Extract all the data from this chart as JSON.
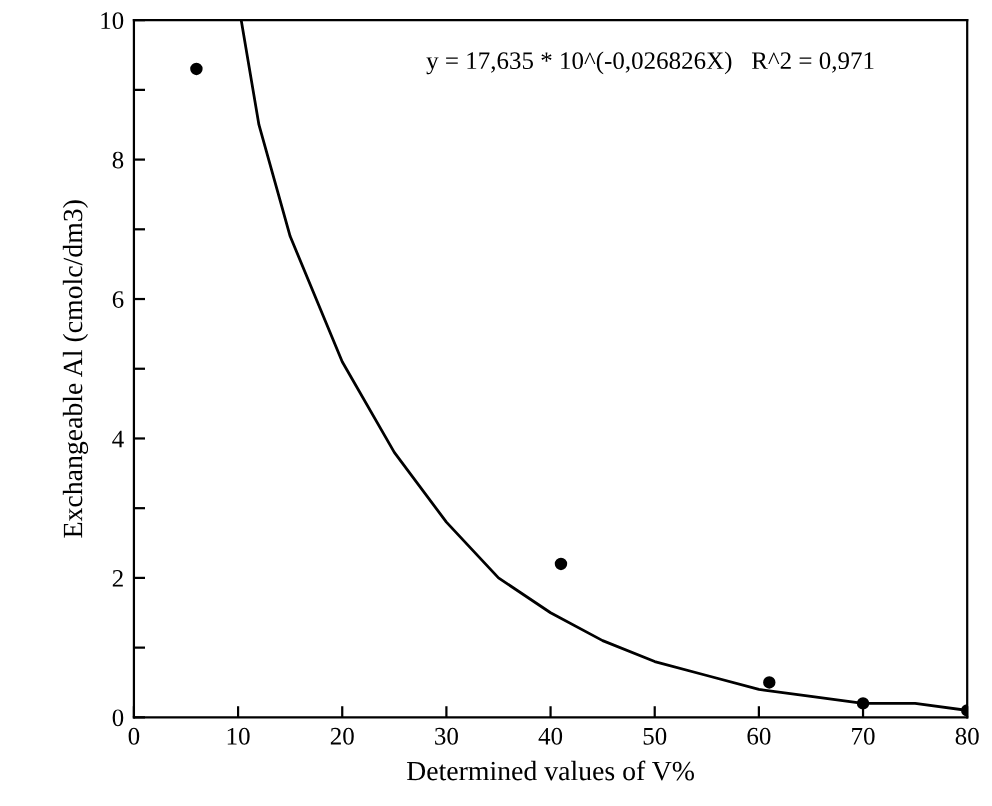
{
  "chart_data": {
    "type": "scatter",
    "xlabel": "Determined values of V%",
    "ylabel": "Exchangeable Al (cmolc/dm3)",
    "annotations": [
      "y = 17,635 * 10^(-0,026826X)   R^2 = 0,971"
    ],
    "xlim": [
      0,
      80
    ],
    "xticks": [
      0,
      10,
      20,
      30,
      40,
      50,
      60,
      70,
      80
    ],
    "ylim": [
      0,
      10
    ],
    "yticks": [
      0,
      {
        "value": 1,
        "label": null
      },
      2,
      {
        "value": 3,
        "label": null
      },
      4,
      {
        "value": 5,
        "label": null
      },
      6,
      {
        "value": 7,
        "label": null
      },
      8,
      {
        "value": 9,
        "label": null
      },
      10
    ],
    "grid": false,
    "marker": "circle",
    "series": [
      {
        "color": "#000000",
        "x": [
          6,
          41,
          61,
          70,
          80
        ],
        "values": [
          9.3,
          2.2,
          0.5,
          0.2,
          0.1
        ]
      },
      {
        "type": "line",
        "color": "#000000",
        "marker": "none",
        "x": [
          10.3,
          12,
          15,
          20,
          25,
          30,
          35,
          40,
          45,
          50,
          55,
          60,
          65,
          70,
          75,
          80
        ],
        "values": [
          10,
          8.5,
          6.9,
          5.1,
          3.8,
          2.8,
          2.0,
          1.5,
          1.1,
          0.8,
          0.6,
          0.4,
          0.3,
          0.2,
          0.2,
          0.1
        ]
      }
    ]
  }
}
